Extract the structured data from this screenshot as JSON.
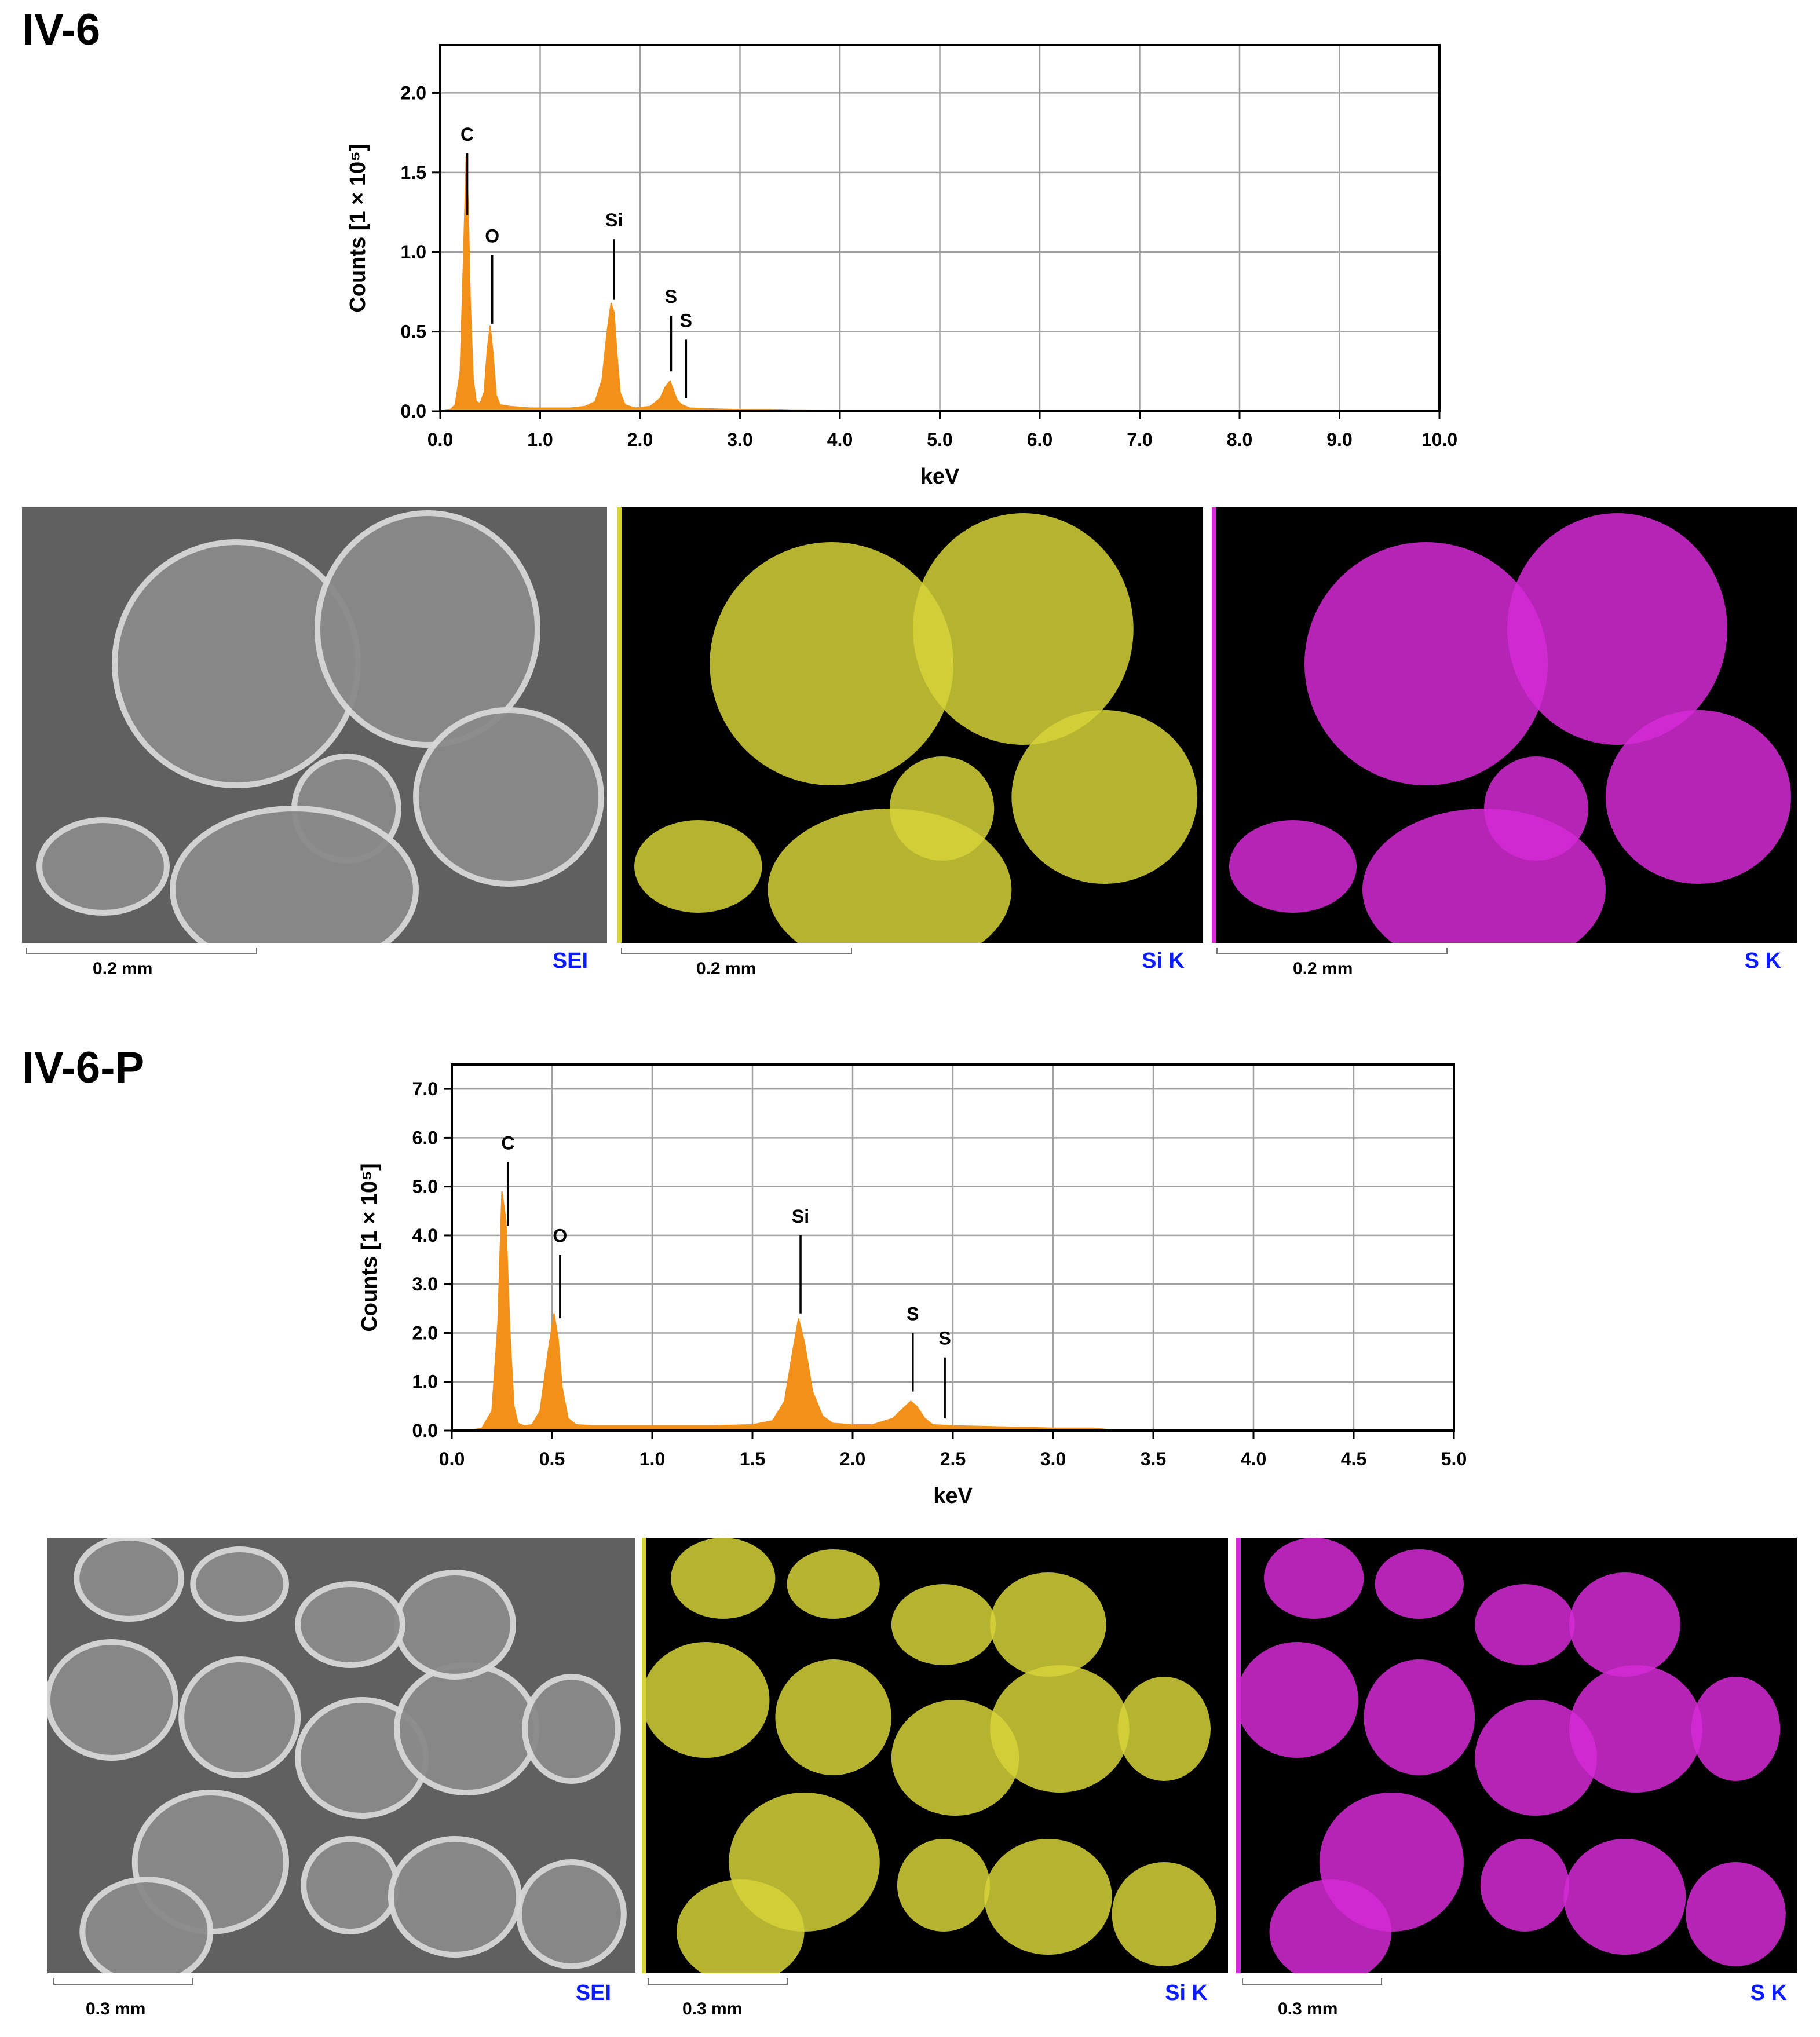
{
  "sections": [
    {
      "title": "IV-6",
      "chart_data": {
        "type": "area",
        "title": "",
        "xlabel": "keV",
        "ylabel": "Counts [1 × 10⁵]",
        "xlim": [
          0.0,
          10.0
        ],
        "ylim": [
          0.0,
          2.3
        ],
        "xticks": [
          "0.0",
          "1.0",
          "2.0",
          "3.0",
          "4.0",
          "5.0",
          "6.0",
          "7.0",
          "8.0",
          "9.0",
          "10.0"
        ],
        "yticks": [
          "0.0",
          "0.5",
          "1.0",
          "1.5",
          "2.0"
        ],
        "grid": true,
        "color": "#F39019",
        "series": [
          {
            "x": [
              0.0,
              0.1,
              0.15,
              0.2,
              0.23,
              0.26,
              0.28,
              0.3,
              0.33,
              0.36,
              0.4,
              0.44,
              0.47,
              0.5,
              0.53,
              0.56,
              0.6,
              0.7,
              0.9,
              1.1,
              1.3,
              1.45,
              1.55,
              1.62,
              1.67,
              1.71,
              1.74,
              1.77,
              1.8,
              1.85,
              1.95,
              2.1,
              2.2,
              2.25,
              2.3,
              2.33,
              2.37,
              2.42,
              2.5,
              2.7,
              3.0,
              3.3,
              3.5,
              4.0,
              5.0,
              6.0,
              7.0,
              8.0,
              9.0,
              10.0
            ],
            "y": [
              0.0,
              0.01,
              0.04,
              0.25,
              0.9,
              1.6,
              1.3,
              0.7,
              0.2,
              0.06,
              0.05,
              0.12,
              0.38,
              0.54,
              0.35,
              0.1,
              0.04,
              0.03,
              0.02,
              0.02,
              0.02,
              0.03,
              0.06,
              0.2,
              0.5,
              0.68,
              0.62,
              0.35,
              0.12,
              0.04,
              0.02,
              0.03,
              0.08,
              0.15,
              0.19,
              0.14,
              0.07,
              0.04,
              0.02,
              0.015,
              0.01,
              0.01,
              0.005,
              0.003,
              0.002,
              0.002,
              0.002,
              0.002,
              0.002,
              0.002
            ]
          }
        ],
        "annotations": [
          {
            "label": "C",
            "x": 0.27,
            "y_top": 1.62,
            "y_bottom": 1.23
          },
          {
            "label": "O",
            "x": 0.52,
            "y_top": 0.98,
            "y_bottom": 0.55
          },
          {
            "label": "Si",
            "x": 1.74,
            "y_top": 1.08,
            "y_bottom": 0.7
          },
          {
            "label": "S",
            "x": 2.31,
            "y_top": 0.6,
            "y_bottom": 0.25
          },
          {
            "label": "S",
            "x": 2.46,
            "y_top": 0.45,
            "y_bottom": 0.08
          }
        ]
      },
      "maps": [
        {
          "label": "SEI",
          "scale": "0.2 mm",
          "kind": "sei",
          "color": "#c8c8c8"
        },
        {
          "label": "Si K",
          "scale": "0.2 mm",
          "kind": "element",
          "color": "#d6d23a"
        },
        {
          "label": "S K",
          "scale": "0.2 mm",
          "kind": "element",
          "color": "#d62ad6"
        }
      ]
    },
    {
      "title": "IV-6-P",
      "chart_data": {
        "type": "area",
        "title": "",
        "xlabel": "keV",
        "ylabel": "Counts [1 × 10⁵]",
        "xlim": [
          0.0,
          5.0
        ],
        "ylim": [
          0.0,
          7.5
        ],
        "xticks": [
          "0.0",
          "0.5",
          "1.0",
          "1.5",
          "2.0",
          "2.5",
          "3.0",
          "3.5",
          "4.0",
          "4.5",
          "5.0"
        ],
        "yticks": [
          "0.0",
          "1.0",
          "2.0",
          "3.0",
          "4.0",
          "5.0",
          "6.0",
          "7.0"
        ],
        "grid": true,
        "color": "#F39019",
        "series": [
          {
            "x": [
              0.0,
              0.1,
              0.15,
              0.2,
              0.23,
              0.25,
              0.27,
              0.29,
              0.31,
              0.33,
              0.36,
              0.4,
              0.44,
              0.48,
              0.51,
              0.53,
              0.55,
              0.58,
              0.62,
              0.7,
              0.9,
              1.1,
              1.3,
              1.5,
              1.6,
              1.66,
              1.7,
              1.73,
              1.76,
              1.8,
              1.85,
              1.9,
              2.0,
              2.1,
              2.2,
              2.25,
              2.29,
              2.32,
              2.36,
              2.4,
              2.5,
              2.7,
              3.0,
              3.2,
              3.3,
              3.5,
              4.0,
              4.5,
              5.0
            ],
            "y": [
              0.0,
              0.01,
              0.05,
              0.4,
              2.2,
              4.9,
              4.3,
              2.0,
              0.5,
              0.15,
              0.1,
              0.12,
              0.4,
              1.6,
              2.4,
              1.9,
              0.9,
              0.25,
              0.12,
              0.1,
              0.1,
              0.1,
              0.1,
              0.12,
              0.2,
              0.6,
              1.6,
              2.3,
              1.8,
              0.8,
              0.3,
              0.15,
              0.12,
              0.12,
              0.25,
              0.45,
              0.6,
              0.5,
              0.25,
              0.12,
              0.1,
              0.08,
              0.05,
              0.05,
              0.01,
              0.01,
              0.01,
              0.01,
              0.01
            ]
          }
        ],
        "annotations": [
          {
            "label": "C",
            "x": 0.28,
            "y_top": 5.5,
            "y_bottom": 4.2
          },
          {
            "label": "O",
            "x": 0.54,
            "y_top": 3.6,
            "y_bottom": 2.3
          },
          {
            "label": "Si",
            "x": 1.74,
            "y_top": 4.0,
            "y_bottom": 2.4
          },
          {
            "label": "S",
            "x": 2.3,
            "y_top": 2.0,
            "y_bottom": 0.8
          },
          {
            "label": "S",
            "x": 2.46,
            "y_top": 1.5,
            "y_bottom": 0.25
          }
        ]
      },
      "maps": [
        {
          "label": "SEI",
          "scale": "0.3 mm",
          "kind": "sei",
          "color": "#c8c8c8"
        },
        {
          "label": "Si K",
          "scale": "0.3 mm",
          "kind": "element",
          "color": "#d6d23a"
        },
        {
          "label": "S K",
          "scale": "0.3 mm",
          "kind": "element",
          "color": "#d62ad6"
        }
      ]
    }
  ]
}
